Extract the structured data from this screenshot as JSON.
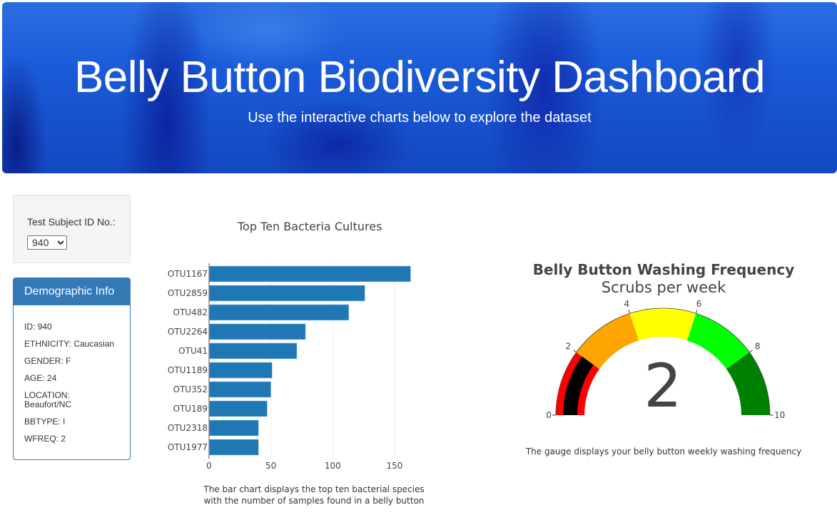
{
  "header": {
    "title": "Belly Button Biodiversity Dashboard",
    "subtitle": "Use the interactive charts below to explore the dataset"
  },
  "selector": {
    "label": "Test Subject ID No.:",
    "selected": "940",
    "options": [
      "940"
    ]
  },
  "demographics": {
    "title": "Demographic Info",
    "items": [
      "ID: 940",
      "ETHNICITY: Caucasian",
      "GENDER: F",
      "AGE: 24",
      "LOCATION: Beaufort/NC",
      "BBTYPE: I",
      "WFREQ: 2"
    ]
  },
  "bar_chart": {
    "title": "Top Ten Bacteria Cultures",
    "note_line1": "The bar chart displays the top ten bacterial species",
    "note_line2": "with the number of samples found in a belly button",
    "color": "#1f77b4"
  },
  "gauge": {
    "title": "Belly Button Washing Frequency",
    "subtitle": "Scrubs per week",
    "value": "2",
    "note": "The gauge displays your belly button weekly washing frequency",
    "ticks": [
      "0",
      "2",
      "4",
      "6",
      "8",
      "10"
    ],
    "steps": [
      {
        "range": [
          0,
          2
        ],
        "color": "#ff0000"
      },
      {
        "range": [
          2,
          4
        ],
        "color": "#ffa500"
      },
      {
        "range": [
          4,
          6
        ],
        "color": "#ffff00"
      },
      {
        "range": [
          6,
          8
        ],
        "color": "#00ff00"
      },
      {
        "range": [
          8,
          10
        ],
        "color": "#008000"
      }
    ],
    "bar_color": "#000000"
  },
  "chart_data": [
    {
      "type": "bar",
      "orientation": "horizontal",
      "title": "Top Ten Bacteria Cultures",
      "categories": [
        "OTU1167",
        "OTU2859",
        "OTU482",
        "OTU2264",
        "OTU41",
        "OTU1189",
        "OTU352",
        "OTU189",
        "OTU2318",
        "OTU1977"
      ],
      "values": [
        163,
        126,
        113,
        78,
        71,
        51,
        50,
        47,
        40,
        40
      ],
      "xlabel": "",
      "ylabel": "",
      "xticks": [
        "0",
        "50",
        "100",
        "150"
      ],
      "xlim": [
        0,
        170
      ],
      "grid": true,
      "color": "#1f77b4"
    },
    {
      "type": "gauge",
      "title": "Belly Button Washing Frequency",
      "subtitle": "Scrubs per week",
      "value": 2,
      "range": [
        0,
        10
      ],
      "ticks": [
        0,
        2,
        4,
        6,
        8,
        10
      ],
      "steps": [
        {
          "range": [
            0,
            2
          ],
          "color": "red"
        },
        {
          "range": [
            2,
            4
          ],
          "color": "orange"
        },
        {
          "range": [
            4,
            6
          ],
          "color": "yellow"
        },
        {
          "range": [
            6,
            8
          ],
          "color": "lime"
        },
        {
          "range": [
            8,
            10
          ],
          "color": "green"
        }
      ],
      "bar_color": "black"
    }
  ]
}
